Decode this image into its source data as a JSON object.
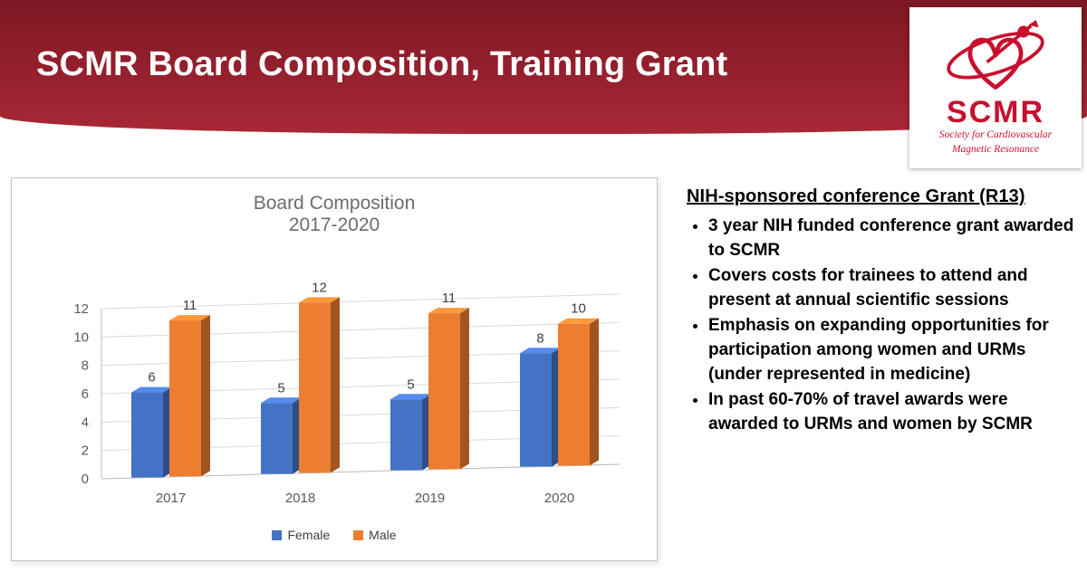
{
  "slide": {
    "title": "SCMR Board Composition, Training Grant"
  },
  "logo": {
    "name": "SCMR",
    "subtitle_line1": "Society for Cardiovascular",
    "subtitle_line2": "Magnetic Resonance",
    "accent_color": "#C8102E"
  },
  "chart_data": {
    "type": "bar",
    "style": "3d-clustered-column",
    "title": "Board Composition",
    "subtitle": "2017-2020",
    "categories": [
      "2017",
      "2018",
      "2019",
      "2020"
    ],
    "series": [
      {
        "name": "Female",
        "color": "#4472C4",
        "values": [
          6,
          5,
          5,
          8
        ]
      },
      {
        "name": "Male",
        "color": "#ED7D31",
        "values": [
          11,
          12,
          11,
          10
        ]
      }
    ],
    "ylim": [
      0,
      12
    ],
    "ytick_step": 2,
    "yticks": [
      0,
      2,
      4,
      6,
      8,
      10,
      12
    ],
    "grid": true,
    "legend_position": "bottom"
  },
  "content": {
    "heading": "NIH-sponsored conference Grant (R13)",
    "bullets": [
      "3 year NIH funded conference grant awarded to SCMR",
      "Covers costs for trainees to attend and present at annual scientific sessions",
      "Emphasis on expanding opportunities for participation among women and URMs (under represented in medicine)",
      "In past 60-70% of travel awards were awarded to URMs and women by SCMR"
    ]
  },
  "colors": {
    "banner_top": "#7c1823",
    "banner_bottom": "#a82836",
    "title_text": "#ffffff",
    "chart_text": "#6d6d6d"
  }
}
